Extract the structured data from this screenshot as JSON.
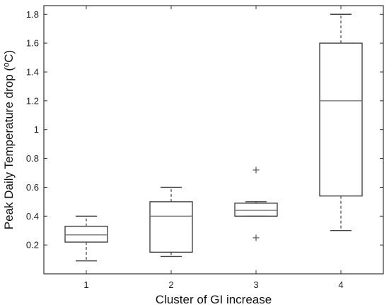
{
  "chart_data": {
    "type": "box",
    "xlabel": "Cluster of GI increase",
    "ylabel": "Peak Daily Temperature drop  (ºC)",
    "categories": [
      "1",
      "2",
      "3",
      "4"
    ],
    "ylim": [
      0,
      1.86
    ],
    "yticks": [
      0.2,
      0.4,
      0.6,
      0.8,
      1,
      1.2,
      1.4,
      1.6,
      1.8
    ],
    "ytick_labels": [
      "0.2",
      "0.4",
      "0.6",
      "0.8",
      "1",
      "1.2",
      "1.4",
      "1.6",
      "1.8"
    ],
    "grid": false,
    "boxes": [
      {
        "category": "1",
        "whisker_low": 0.09,
        "q1": 0.22,
        "median": 0.27,
        "q3": 0.33,
        "whisker_high": 0.4,
        "outliers": []
      },
      {
        "category": "2",
        "whisker_low": 0.12,
        "q1": 0.15,
        "median": 0.4,
        "q3": 0.5,
        "whisker_high": 0.6,
        "outliers": []
      },
      {
        "category": "3",
        "whisker_low": 0.4,
        "q1": 0.4,
        "median": 0.44,
        "q3": 0.49,
        "whisker_high": 0.5,
        "outliers": [
          0.25,
          0.72
        ]
      },
      {
        "category": "4",
        "whisker_low": 0.3,
        "q1": 0.54,
        "median": 1.2,
        "q3": 1.6,
        "whisker_high": 1.8,
        "outliers": []
      }
    ],
    "colors": {
      "box": "#444444",
      "median": "#777777",
      "axis": "#333333"
    }
  }
}
